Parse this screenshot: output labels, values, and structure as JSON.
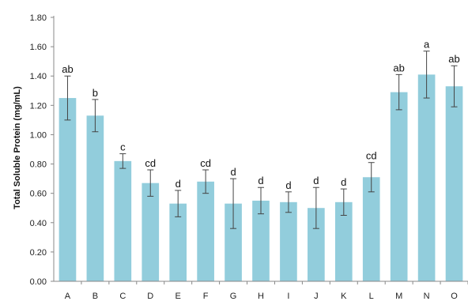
{
  "chart_data": {
    "type": "bar",
    "title": "",
    "xlabel": "",
    "ylabel": "Total Soluble Protein (mg/mL)",
    "ylim": [
      0,
      1.8
    ],
    "yticks": [
      "0.00",
      "0.20",
      "0.40",
      "0.60",
      "0.80",
      "1.00",
      "1.20",
      "1.40",
      "1.60",
      "1.80"
    ],
    "grid": false,
    "legend": "none",
    "bar_color": "#92cddc",
    "categories": [
      "A",
      "B",
      "C",
      "D",
      "E",
      "F",
      "G",
      "H",
      "I",
      "J",
      "K",
      "L",
      "M",
      "N",
      "O"
    ],
    "values": [
      1.25,
      1.13,
      0.82,
      0.67,
      0.53,
      0.68,
      0.53,
      0.55,
      0.54,
      0.5,
      0.54,
      0.71,
      1.29,
      1.41,
      1.33
    ],
    "errors": [
      0.15,
      0.11,
      0.05,
      0.09,
      0.09,
      0.08,
      0.17,
      0.09,
      0.07,
      0.14,
      0.09,
      0.1,
      0.12,
      0.16,
      0.14
    ],
    "significance": [
      "ab",
      "b",
      "c",
      "cd",
      "d",
      "cd",
      "d",
      "d",
      "d",
      "d",
      "d",
      "cd",
      "ab",
      "a",
      "ab"
    ]
  }
}
